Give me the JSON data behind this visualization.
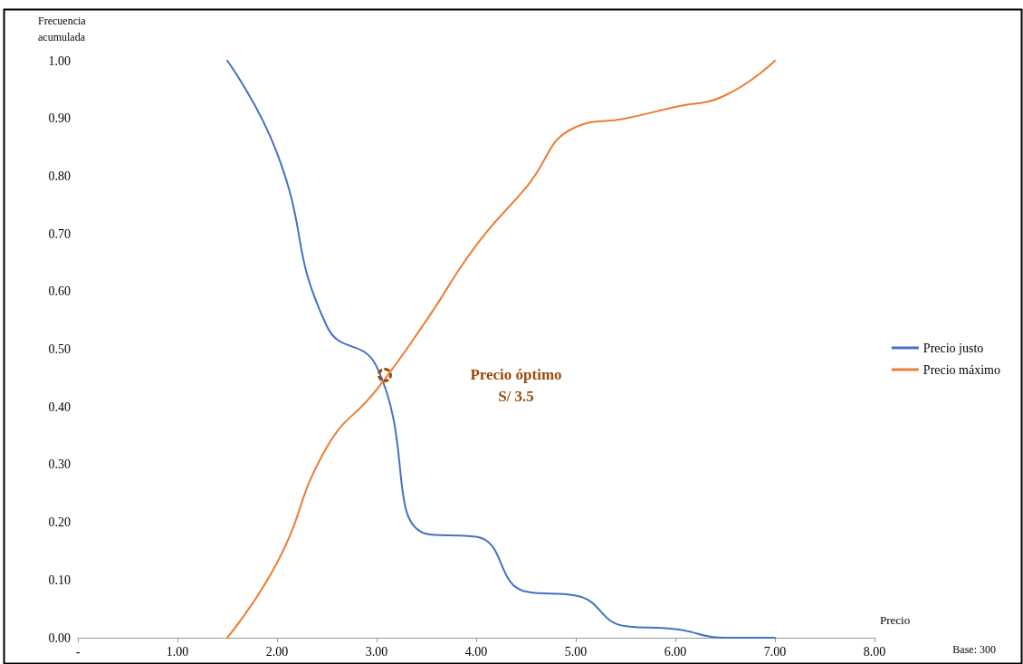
{
  "chart_data": {
    "type": "line",
    "xlabel": "Precio",
    "ylabel": "Frecuencia\nacumulada",
    "series": [
      {
        "name": "Precio justo",
        "color": "#4472c4",
        "x": [
          1.5,
          2,
          2.5,
          3,
          3.5,
          4,
          4.5,
          5,
          5.5,
          6,
          6.5,
          7
        ],
        "values": [
          1.0,
          0.84,
          0.54,
          0.47,
          0.18,
          0.175,
          0.08,
          0.073,
          0.02,
          0.015,
          0.0,
          0.0
        ]
      },
      {
        "name": "Precio máximo",
        "color": "#ed7d31",
        "x": [
          1.5,
          2,
          2.5,
          3,
          3.5,
          4,
          4.5,
          5,
          5.5,
          6,
          6.5,
          7
        ],
        "values": [
          0.0,
          0.13,
          0.33,
          0.43,
          0.55,
          0.68,
          0.78,
          0.885,
          0.9,
          0.92,
          0.94,
          1.0
        ]
      }
    ],
    "xlim": [
      0,
      8
    ],
    "xticks": [
      {
        "value": 0,
        "label": "-"
      },
      {
        "value": 1,
        "label": "1.00"
      },
      {
        "value": 2,
        "label": "2.00"
      },
      {
        "value": 3,
        "label": "3.00"
      },
      {
        "value": 4,
        "label": "4.00"
      },
      {
        "value": 5,
        "label": "5.00"
      },
      {
        "value": 6,
        "label": "6.00"
      },
      {
        "value": 7,
        "label": "7.00"
      },
      {
        "value": 8,
        "label": "8.00"
      }
    ],
    "ylim": [
      0,
      1
    ],
    "yticks": [
      {
        "value": 0,
        "label": "0.00"
      },
      {
        "value": 0.1,
        "label": "0.10"
      },
      {
        "value": 0.2,
        "label": "0.20"
      },
      {
        "value": 0.3,
        "label": "0.30"
      },
      {
        "value": 0.4,
        "label": "0.40"
      },
      {
        "value": 0.5,
        "label": "0.50"
      },
      {
        "value": 0.6,
        "label": "0.60"
      },
      {
        "value": 0.7,
        "label": "0.70"
      },
      {
        "value": 0.8,
        "label": "0.80"
      },
      {
        "value": 0.9,
        "label": "0.90"
      },
      {
        "value": 1,
        "label": "1.00"
      }
    ],
    "annotations": [
      "Precio óptimo\nS/ 3.5",
      "Base: 300"
    ],
    "grid": false,
    "legend": "right",
    "marker": "none",
    "line_style": "solid"
  }
}
